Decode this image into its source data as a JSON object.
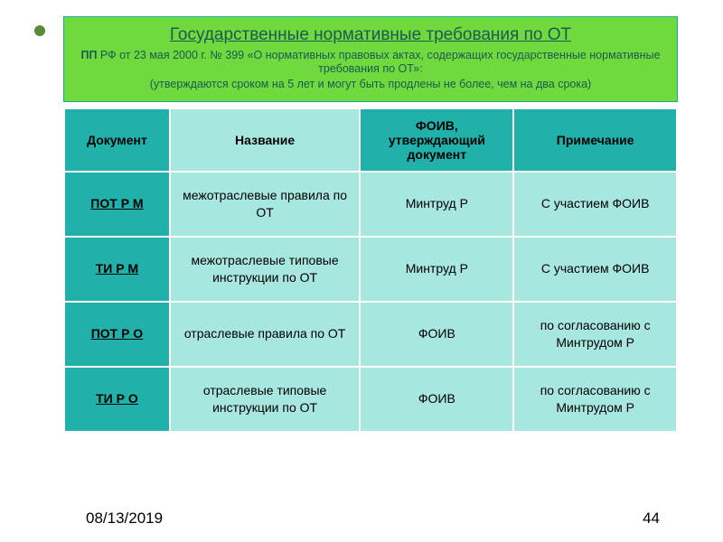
{
  "title": {
    "main": "Государственные нормативные требования по ОТ",
    "pp_label": "ПП",
    "sub": " РФ от 23 мая 2000 г. № 399 «О нормативных правовых актах, содержащих государственные нормативные требования по ОТ»:",
    "note": "(утверждаются сроком на 5 лет и могут быть продлены не более, чем на два срока)"
  },
  "colors": {
    "title_bg": "#70d93e",
    "title_text": "#1a5a52",
    "header_bg": "#20b2aa",
    "cell_bg": "#a8e6e0",
    "border": "#ffffff"
  },
  "table": {
    "columns": [
      "Документ",
      "Название",
      "ФОИВ, утверждающий документ",
      "Примечание"
    ],
    "rows": [
      {
        "doc": "ПОТ  Р  М",
        "name": "межотраслевые правила по ОТ",
        "foiv": "Минтруд Р",
        "note": "С участием ФОИВ"
      },
      {
        "doc": "ТИ  Р  М",
        "name": "межотраслевые типовые инструкции по ОТ",
        "foiv": "Минтруд Р",
        "note": "С участием ФОИВ"
      },
      {
        "doc": "ПОТ  Р  О",
        "name": "отраслевые правила по ОТ",
        "foiv": "ФОИВ",
        "note": "по согласованию с Минтрудом Р"
      },
      {
        "doc": "ТИ  Р  О",
        "name": "отраслевые типовые инструкции по ОТ",
        "foiv": "ФОИВ",
        "note": "по согласованию с Минтрудом Р"
      }
    ]
  },
  "footer": {
    "date": "08/13/2019",
    "page": "44"
  }
}
